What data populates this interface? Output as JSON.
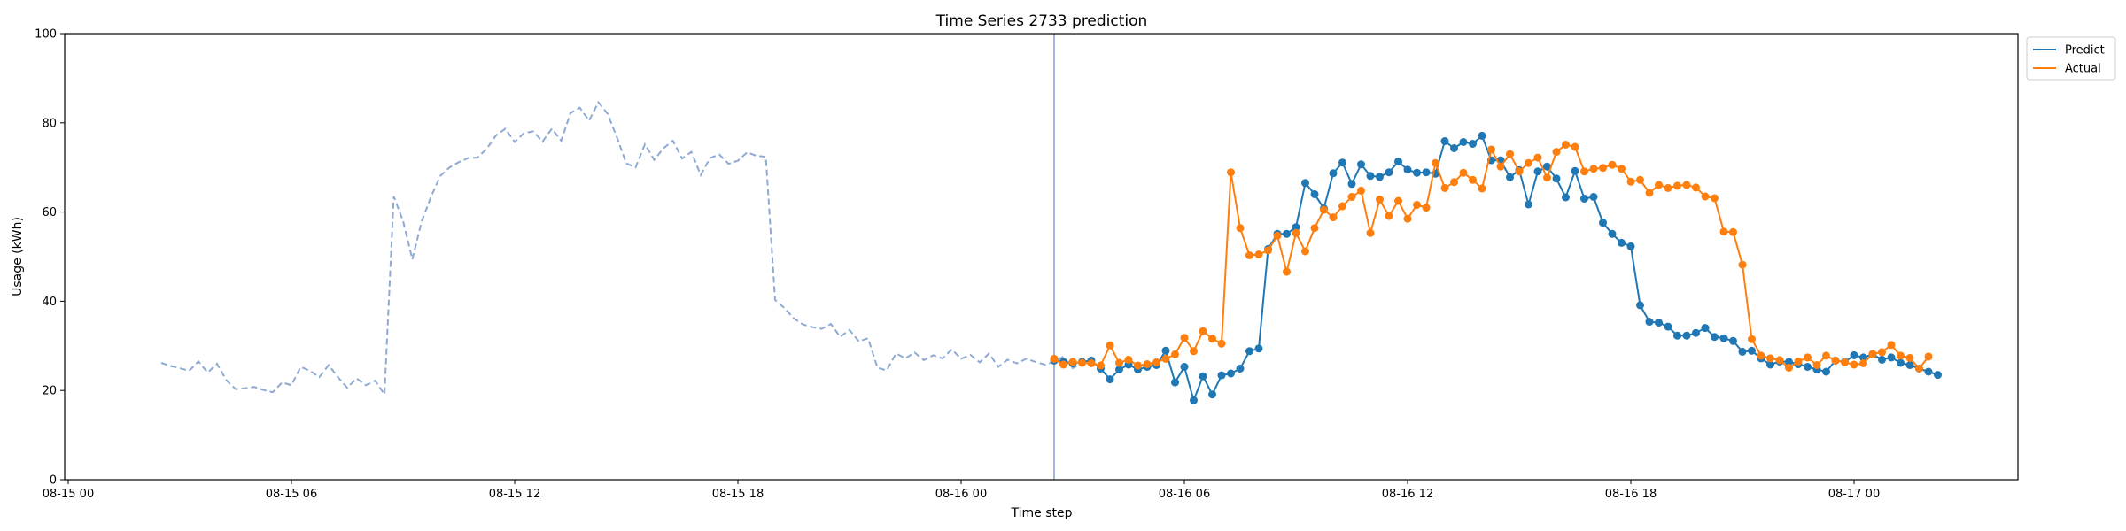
{
  "chart_data": {
    "type": "line",
    "title": "Time Series 2733 prediction",
    "xlabel": "Time step",
    "ylabel": "Usage (kWh)",
    "x_range": [
      "08-15 00",
      "08-17 06"
    ],
    "ylim": [
      0,
      100
    ],
    "xticks": [
      "08-15 00",
      "08-15 06",
      "08-15 12",
      "08-15 18",
      "08-16 00",
      "08-16 06",
      "08-16 12",
      "08-16 18",
      "08-17 00"
    ],
    "yticks": [
      0,
      20,
      40,
      60,
      80,
      100
    ],
    "grid": false,
    "legend": {
      "placement": "top-right, outside plot",
      "entries": [
        "Predict",
        "Actual"
      ]
    },
    "forecast_start": "08-16 02:30",
    "history": {
      "style": "dashed",
      "color": "#8eaad3",
      "start": "08-15 02:30",
      "interval_minutes": 15,
      "values": [
        26.2,
        25.5,
        25,
        24.4,
        26.5,
        24,
        26,
        22.3,
        20.3,
        20.5,
        20.8,
        20.1,
        19.6,
        21.8,
        21.2,
        25.3,
        24.4,
        23,
        25.7,
        23,
        20.6,
        22.7,
        21.2,
        22.2,
        19.1,
        63.5,
        58,
        49.4,
        57.9,
        63.4,
        68.1,
        70,
        71.2,
        72.1,
        72.2,
        74.2,
        77.2,
        78.7,
        75.7,
        77.7,
        78.1,
        75.8,
        78.7,
        76,
        82.2,
        83.4,
        80.5,
        84.6,
        82,
        76.7,
        70.9,
        70,
        75.2,
        71.7,
        74.3,
        76,
        72,
        73.5,
        68.3,
        72.1,
        72.9,
        70.8,
        71.5,
        73.4,
        72.6,
        72.4,
        40.3,
        38.5,
        36.2,
        34.8,
        34.2,
        33.8,
        34.9,
        32,
        33.6,
        31,
        31.7,
        25.1,
        24.5,
        28.3,
        27.2,
        28.5,
        26.8,
        27.9,
        27.2,
        29.2,
        27.1,
        28,
        26.3,
        28.3,
        25.3,
        26.9,
        26.1,
        27.1,
        26.4,
        25.8,
        26.4,
        27.6,
        25,
        26.2
      ]
    },
    "forecast": {
      "start": "08-16 02:30",
      "interval_minutes": 15,
      "series": [
        {
          "name": "Predict",
          "color": "#1f77b4",
          "values": [
            26.7,
            26.4,
            26.1,
            26.4,
            26.7,
            24.9,
            22.5,
            24.7,
            25.8,
            24.7,
            25.3,
            25.7,
            28.9,
            21.8,
            25.3,
            17.8,
            23.2,
            19.1,
            23.4,
            23.8,
            24.9,
            28.8,
            29.4,
            51.7,
            55.1,
            55.1,
            56.6,
            66.5,
            64,
            60.8,
            68.7,
            71.1,
            66.3,
            70.7,
            68.1,
            67.9,
            68.9,
            71.3,
            69.5,
            68.8,
            68.9,
            68.6,
            75.9,
            74.3,
            75.7,
            75.3,
            77.1,
            71.6,
            71.6,
            67.8,
            69.4,
            61.7,
            69.1,
            70.2,
            67.5,
            63.3,
            69.2,
            63,
            63.4,
            57.6,
            55.1,
            53.1,
            52.3,
            39.1,
            35.4,
            35.2,
            34.3,
            32.3,
            32.3,
            32.9,
            34,
            32,
            31.7,
            31.1,
            28.7,
            28.9,
            27.2,
            25.8,
            26.5,
            26.4,
            25.9,
            25.3,
            24.7,
            24.2,
            26.7,
            26.4,
            27.9,
            27.4,
            28.1,
            26.9,
            27.4,
            26.2,
            25.7,
            24.9,
            24.2,
            23.5
          ]
        },
        {
          "name": "Actual",
          "color": "#ff7f0e",
          "values": [
            27.1,
            25.8,
            26.4,
            26.2,
            26.1,
            25.6,
            30.1,
            26.2,
            26.9,
            25.6,
            25.9,
            26.3,
            27.1,
            28.1,
            31.8,
            28.8,
            33.3,
            31.6,
            30.5,
            68.9,
            56.4,
            50.3,
            50.5,
            51.4,
            54.7,
            46.6,
            55.3,
            51.2,
            56.4,
            60.5,
            58.8,
            61.3,
            63.4,
            64.8,
            55.3,
            62.8,
            59.1,
            62.5,
            58.5,
            61.6,
            61,
            71,
            65.4,
            66.7,
            68.8,
            67.2,
            65.3,
            74,
            70.2,
            73,
            69.1,
            71,
            72.2,
            67.7,
            73.5,
            75.1,
            74.6,
            69.1,
            69.7,
            69.9,
            70.6,
            69.7,
            66.8,
            67.2,
            64.3,
            66.1,
            65.4,
            65.9,
            66.1,
            65.5,
            63.5,
            63.1,
            55.6,
            55.5,
            48.2,
            31.5,
            27.8,
            27.2,
            26.8,
            25.1,
            26.5,
            27.4,
            25.7,
            27.8,
            26.7,
            26.3,
            25.8,
            26.1,
            28.2,
            28.6,
            30.2,
            27.8,
            27.3,
            24.9,
            27.6
          ]
        }
      ]
    }
  }
}
